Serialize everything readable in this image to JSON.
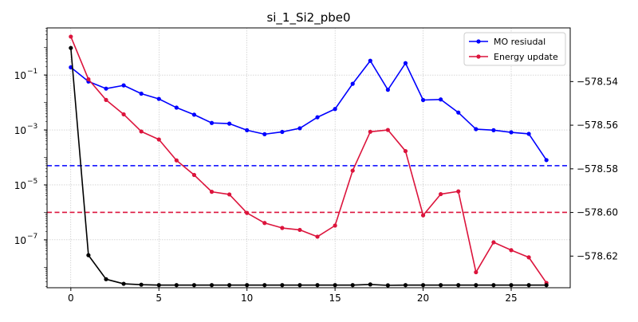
{
  "chart_data": {
    "type": "line",
    "title": "si_1_Si2_pbe0",
    "xlabel": "",
    "ylabel_left": "",
    "ylabel_right": "",
    "x_ticks": [
      "0",
      "5",
      "10",
      "15",
      "20",
      "25"
    ],
    "x_range": [
      -1.35,
      28.35
    ],
    "left_axis": {
      "scale": "log",
      "range": [
        1.8e-09,
        5.2
      ],
      "tick_values": [
        0.1,
        0.001,
        1e-05,
        1e-07
      ],
      "tick_labels": [
        "10",
        "10",
        "10",
        "10"
      ],
      "tick_exponents": [
        "−1",
        "−3",
        "−5",
        "−7"
      ]
    },
    "right_axis": {
      "scale": "linear",
      "range": [
        -578.6345,
        -578.5154
      ],
      "tick_values": [
        -578.54,
        -578.56,
        -578.58,
        -578.6,
        -578.62
      ],
      "tick_labels": [
        "−578.54",
        "−578.56",
        "−578.58",
        "−578.60",
        "−578.62"
      ]
    },
    "grid": true,
    "legend_position": "top-right",
    "x": [
      0,
      1,
      2,
      3,
      4,
      5,
      6,
      7,
      8,
      9,
      10,
      11,
      12,
      13,
      14,
      15,
      16,
      17,
      18,
      19,
      20,
      21,
      22,
      23,
      24,
      25,
      26,
      27
    ],
    "series": [
      {
        "name": "MO resiudal",
        "axis": "left",
        "color": "#0000ff",
        "values": [
          0.19,
          0.058,
          0.032,
          0.042,
          0.021,
          0.0135,
          0.0065,
          0.0036,
          0.0018,
          0.0017,
          0.00098,
          0.0007,
          0.00085,
          0.00115,
          0.0029,
          0.0058,
          0.048,
          0.33,
          0.029,
          0.27,
          0.0123,
          0.0129,
          0.0043,
          0.00107,
          0.00098,
          0.00082,
          0.00072,
          8e-05
        ]
      },
      {
        "name": "Energy update",
        "axis": "left",
        "color": "#dc143c",
        "values": [
          2.5,
          0.07,
          0.0124,
          0.0037,
          0.00088,
          0.00045,
          7.8e-05,
          2.3e-05,
          5.6e-06,
          4.5e-06,
          9.5e-07,
          4.1e-07,
          2.7e-07,
          2.3e-07,
          1.3e-07,
          3.3e-07,
          3.3e-05,
          0.00086,
          0.001,
          0.00017,
          7.8e-07,
          4.6e-06,
          5.8e-06,
          6.6e-09,
          8.1e-08,
          4.2e-08,
          2.3e-08,
          2.7e-09
        ]
      },
      {
        "name": "",
        "axis": "right",
        "color": "#000000",
        "values": [
          -578.5246,
          -578.6196,
          -578.6306,
          -578.6327,
          -578.6331,
          -578.6333,
          -578.6333,
          -578.6333,
          -578.6333,
          -578.6333,
          -578.6333,
          -578.6333,
          -578.6333,
          -578.6333,
          -578.6333,
          -578.6333,
          -578.6333,
          -578.633,
          -578.6334,
          -578.6333,
          -578.6333,
          -578.6333,
          -578.6333,
          -578.6333,
          -578.6333,
          -578.6333,
          -578.6333,
          -578.6333
        ]
      }
    ],
    "hlines": [
      {
        "axis": "left",
        "value": 5e-05,
        "color": "#0000ff"
      },
      {
        "axis": "left",
        "value": 1e-06,
        "color": "#dc143c"
      }
    ]
  }
}
